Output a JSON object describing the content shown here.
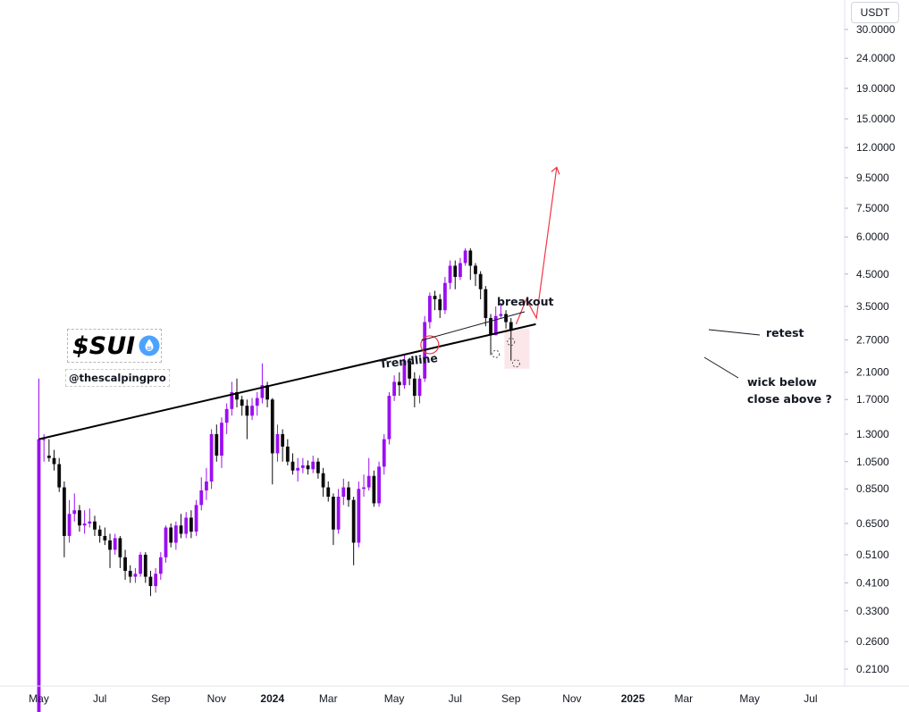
{
  "currency": "USDT",
  "logo": {
    "ticker": "$SUI",
    "drop_icon": "sui-drop-icon"
  },
  "handle": "@thescalpingpro",
  "annotations": {
    "trendline": "Trendline",
    "breakout": "breakout",
    "retest": "retest",
    "wick_line1": "wick below",
    "wick_line2": "close above  ?"
  },
  "colors": {
    "bull": "#9b0ff0",
    "bear": "#0b0b0b",
    "projection": "#f23645",
    "trendline": "#000000",
    "wick_highlight": "#f7c9cf"
  },
  "chart_data": {
    "type": "candlestick",
    "interval": "weekly",
    "y_scale": "log",
    "ylim": [
      0.18,
      33
    ],
    "y_ticks": [
      "30.0000",
      "24.0000",
      "19.0000",
      "15.0000",
      "12.0000",
      "9.5000",
      "7.5000",
      "6.0000",
      "4.5000",
      "3.5000",
      "2.7000",
      "2.1000",
      "1.7000",
      "1.3000",
      "1.0500",
      "0.8500",
      "0.6500",
      "0.5100",
      "0.4100",
      "0.3300",
      "0.2600",
      "0.2100"
    ],
    "x_ticks": [
      "May",
      "Jul",
      "Sep",
      "Nov",
      "2024",
      "Mar",
      "May",
      "Jul",
      "Sep",
      "Nov",
      "2025",
      "Mar",
      "May",
      "Jul"
    ],
    "candles": [
      [
        0.1,
        1.25,
        2.0,
        0.1,
        1.25
      ],
      [
        1.25,
        1.25,
        1.3,
        1.05,
        1.1
      ],
      [
        1.1,
        1.08,
        1.25,
        1.05,
        1.08
      ],
      [
        1.08,
        1.03,
        1.15,
        0.98,
        1.03
      ],
      [
        1.03,
        0.86,
        1.08,
        0.83,
        0.86
      ],
      [
        0.86,
        0.59,
        0.9,
        0.5,
        0.59
      ],
      [
        0.59,
        0.7,
        0.78,
        0.56,
        0.7
      ],
      [
        0.7,
        0.72,
        0.82,
        0.66,
        0.72
      ],
      [
        0.72,
        0.64,
        0.75,
        0.61,
        0.64
      ],
      [
        0.64,
        0.65,
        0.72,
        0.6,
        0.65
      ],
      [
        0.65,
        0.66,
        0.73,
        0.63,
        0.66
      ],
      [
        0.66,
        0.62,
        0.69,
        0.59,
        0.62
      ],
      [
        0.62,
        0.59,
        0.64,
        0.56,
        0.59
      ],
      [
        0.59,
        0.57,
        0.63,
        0.55,
        0.57
      ],
      [
        0.57,
        0.53,
        0.6,
        0.46,
        0.53
      ],
      [
        0.53,
        0.58,
        0.6,
        0.51,
        0.58
      ],
      [
        0.58,
        0.5,
        0.59,
        0.46,
        0.5
      ],
      [
        0.5,
        0.45,
        0.53,
        0.42,
        0.45
      ],
      [
        0.45,
        0.43,
        0.47,
        0.41,
        0.43
      ],
      [
        0.43,
        0.44,
        0.46,
        0.41,
        0.44
      ],
      [
        0.44,
        0.51,
        0.52,
        0.43,
        0.51
      ],
      [
        0.51,
        0.43,
        0.52,
        0.41,
        0.43
      ],
      [
        0.43,
        0.4,
        0.45,
        0.37,
        0.4
      ],
      [
        0.4,
        0.44,
        0.46,
        0.38,
        0.44
      ],
      [
        0.44,
        0.5,
        0.52,
        0.42,
        0.5
      ],
      [
        0.5,
        0.63,
        0.64,
        0.48,
        0.63
      ],
      [
        0.63,
        0.56,
        0.65,
        0.54,
        0.56
      ],
      [
        0.56,
        0.64,
        0.66,
        0.53,
        0.64
      ],
      [
        0.64,
        0.6,
        0.7,
        0.58,
        0.6
      ],
      [
        0.6,
        0.68,
        0.71,
        0.58,
        0.68
      ],
      [
        0.68,
        0.61,
        0.72,
        0.58,
        0.61
      ],
      [
        0.61,
        0.75,
        0.78,
        0.59,
        0.75
      ],
      [
        0.75,
        0.84,
        0.93,
        0.72,
        0.84
      ],
      [
        0.84,
        0.9,
        1.0,
        0.78,
        0.9
      ],
      [
        0.9,
        1.3,
        1.35,
        0.85,
        1.3
      ],
      [
        1.3,
        1.1,
        1.4,
        1.05,
        1.1
      ],
      [
        1.1,
        1.42,
        1.48,
        1.0,
        1.42
      ],
      [
        1.42,
        1.58,
        1.65,
        1.3,
        1.58
      ],
      [
        1.58,
        1.8,
        1.95,
        1.5,
        1.8
      ],
      [
        1.8,
        1.7,
        2.0,
        1.6,
        1.7
      ],
      [
        1.7,
        1.62,
        1.75,
        1.5,
        1.62
      ],
      [
        1.62,
        1.5,
        1.7,
        1.25,
        1.5
      ],
      [
        1.5,
        1.62,
        1.72,
        1.45,
        1.62
      ],
      [
        1.62,
        1.72,
        1.8,
        1.5,
        1.72
      ],
      [
        1.72,
        1.9,
        2.25,
        1.65,
        1.9
      ],
      [
        1.9,
        1.7,
        1.95,
        1.6,
        1.7
      ],
      [
        1.7,
        1.12,
        1.72,
        0.88,
        1.12
      ],
      [
        1.12,
        1.3,
        1.4,
        1.05,
        1.3
      ],
      [
        1.3,
        1.18,
        1.35,
        1.05,
        1.18
      ],
      [
        1.18,
        1.05,
        1.25,
        1.02,
        1.05
      ],
      [
        1.05,
        0.98,
        1.12,
        0.95,
        0.98
      ],
      [
        0.98,
        1.0,
        1.08,
        0.9,
        1.0
      ],
      [
        1.0,
        1.02,
        1.08,
        0.96,
        1.02
      ],
      [
        1.02,
        0.99,
        1.06,
        0.95,
        0.99
      ],
      [
        0.99,
        1.05,
        1.1,
        0.96,
        1.05
      ],
      [
        1.05,
        0.96,
        1.08,
        0.92,
        0.96
      ],
      [
        0.96,
        0.86,
        1.0,
        0.8,
        0.86
      ],
      [
        0.86,
        0.8,
        0.9,
        0.77,
        0.8
      ],
      [
        0.8,
        0.62,
        0.82,
        0.55,
        0.62
      ],
      [
        0.62,
        0.8,
        0.85,
        0.6,
        0.8
      ],
      [
        0.8,
        0.86,
        0.92,
        0.75,
        0.86
      ],
      [
        0.86,
        0.78,
        0.9,
        0.74,
        0.78
      ],
      [
        0.78,
        0.56,
        0.8,
        0.47,
        0.56
      ],
      [
        0.56,
        0.85,
        0.9,
        0.54,
        0.85
      ],
      [
        0.85,
        0.86,
        0.95,
        0.8,
        0.86
      ],
      [
        0.86,
        0.94,
        1.08,
        0.84,
        0.94
      ],
      [
        0.94,
        0.76,
        0.98,
        0.74,
        0.76
      ],
      [
        0.76,
        1.01,
        1.05,
        0.74,
        1.01
      ],
      [
        1.01,
        1.25,
        1.3,
        0.95,
        1.25
      ],
      [
        1.25,
        1.75,
        1.8,
        1.2,
        1.75
      ],
      [
        1.75,
        1.95,
        2.05,
        1.68,
        1.95
      ],
      [
        1.95,
        1.9,
        2.1,
        1.75,
        1.9
      ],
      [
        1.9,
        2.3,
        2.4,
        1.85,
        2.3
      ],
      [
        2.3,
        2.0,
        2.35,
        1.9,
        2.0
      ],
      [
        2.0,
        1.75,
        2.1,
        1.6,
        1.75
      ],
      [
        1.75,
        2.0,
        2.05,
        1.65,
        2.0
      ],
      [
        2.0,
        3.1,
        3.25,
        1.95,
        3.1
      ],
      [
        3.1,
        3.8,
        3.9,
        2.95,
        3.8
      ],
      [
        3.8,
        3.7,
        3.95,
        3.4,
        3.7
      ],
      [
        3.7,
        3.4,
        3.85,
        3.2,
        3.4
      ],
      [
        3.4,
        4.2,
        4.4,
        3.3,
        4.2
      ],
      [
        4.2,
        4.8,
        5.0,
        4.0,
        4.8
      ],
      [
        4.8,
        4.4,
        5.0,
        4.0,
        4.4
      ],
      [
        4.4,
        4.9,
        5.1,
        4.3,
        4.9
      ],
      [
        4.9,
        5.4,
        5.5,
        4.8,
        5.4
      ],
      [
        5.4,
        4.8,
        5.5,
        4.3,
        4.8
      ],
      [
        4.8,
        4.5,
        4.9,
        4.1,
        4.5
      ],
      [
        4.5,
        4.0,
        4.6,
        3.7,
        4.0
      ],
      [
        4.0,
        3.2,
        4.1,
        3.0,
        3.2
      ],
      [
        3.2,
        2.8,
        3.3,
        2.4,
        2.8
      ],
      [
        2.8,
        3.25,
        3.5,
        2.8,
        3.25
      ],
      [
        3.25,
        3.3,
        3.6,
        3.2,
        3.3
      ],
      [
        3.3,
        3.1,
        3.4,
        2.95,
        3.1
      ],
      [
        3.1,
        2.9,
        3.2,
        2.3,
        2.9
      ]
    ],
    "trendline": {
      "from": {
        "candle": 0,
        "price": 1.25
      },
      "to": {
        "candle": 97,
        "price": 3.05
      }
    },
    "projection": [
      {
        "candle": 94,
        "price": 3.05
      },
      {
        "candle": 96,
        "price": 3.7
      },
      {
        "candle": 98,
        "price": 3.2
      },
      {
        "candle": 102,
        "price": 10.3
      }
    ],
    "markers": {
      "breakout_circle": {
        "candle": 77,
        "price": 2.6
      },
      "retest_points": [
        {
          "candle": 90,
          "price": 2.42
        },
        {
          "candle": 93,
          "price": 2.66
        },
        {
          "candle": 94,
          "price": 2.25
        }
      ]
    }
  }
}
